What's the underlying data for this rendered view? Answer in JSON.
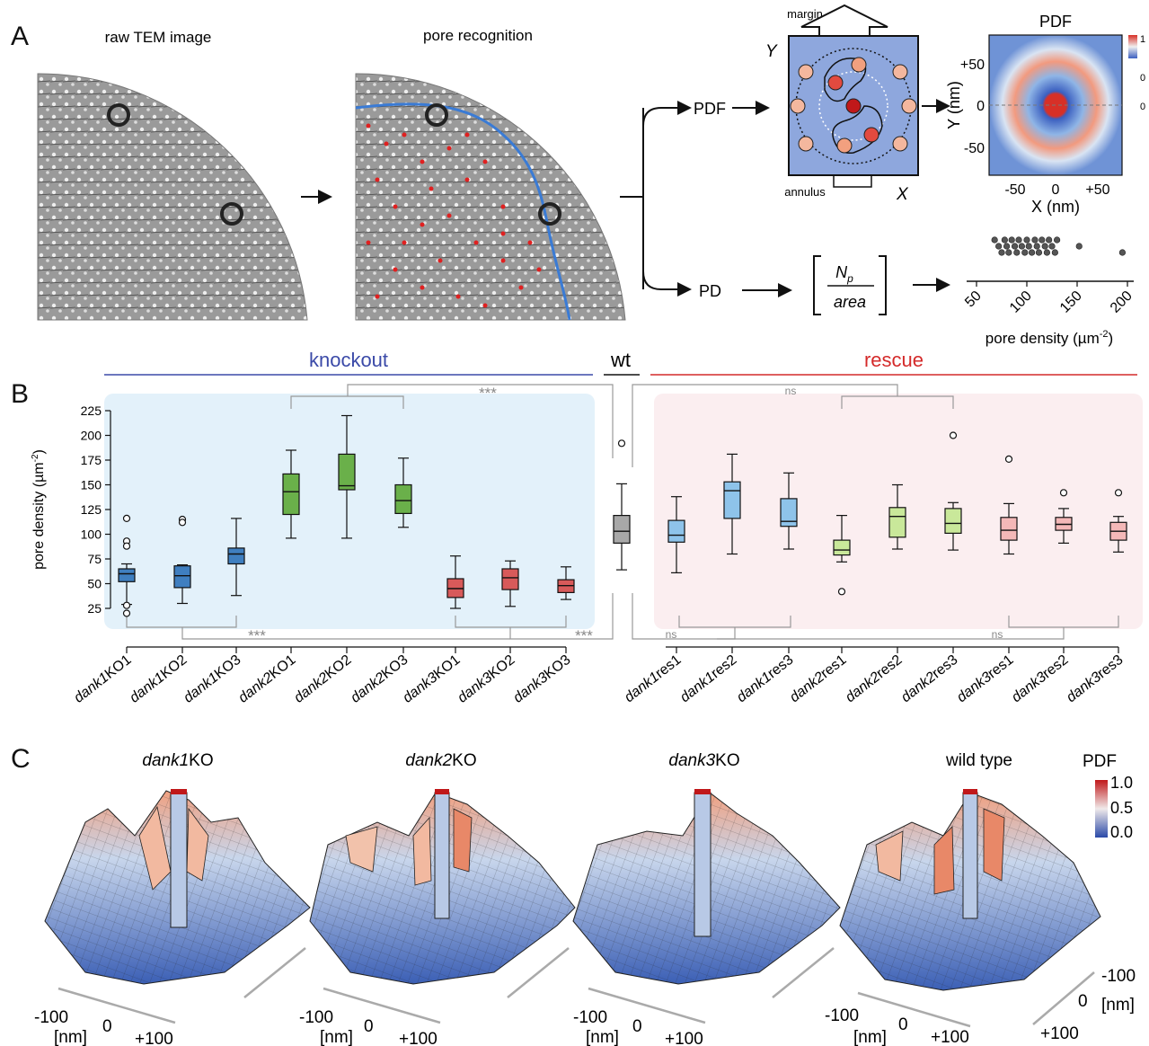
{
  "panel_a": {
    "letter": "A",
    "raw_title": "raw TEM image",
    "rec_title": "pore recognition",
    "pdf_label": "PDF",
    "pd_label": "PD",
    "margin_label": "margin",
    "annulus_label": "annulus",
    "x_letter": "X",
    "y_letter": "Y",
    "fraction_num": "N",
    "fraction_sub": "p",
    "fraction_den": "area",
    "heatmap": {
      "title": "PDF",
      "colorbar_ticks": [
        "1",
        "0",
        "0"
      ],
      "xticks": [
        "-50",
        "0",
        "+50"
      ],
      "yticks": [
        "+50",
        "0",
        "-50"
      ],
      "xlabel": "X (nm)",
      "ylabel": "Y (nm)"
    },
    "strip": {
      "ticks": [
        "50",
        "100",
        "150",
        "200"
      ],
      "xlabel": "pore density (µm",
      "xlabel_sup": "-2",
      "xlabel_end": ")"
    }
  },
  "panel_b": {
    "letter": "B",
    "group_knockout": "knockout",
    "group_wt": "wt",
    "group_rescue": "rescue",
    "ylabel": "pore density (µm",
    "ylabel_sup": "-2",
    "ylabel_end": ")",
    "sig": {
      "top_ko": "***",
      "top_res": "ns",
      "bot_ko1": "***",
      "bot_ko2": "***",
      "bot_res1": "ns",
      "bot_res2": "ns"
    },
    "colors": {
      "ko_bg": "#e3f1fa",
      "res_bg": "#fbeef0",
      "ko_line": "#3b4aa8",
      "res_line": "#d42a2a"
    }
  },
  "chart_data": {
    "type": "box",
    "ylabel": "pore density (µm-2)",
    "ylim": [
      20,
      230
    ],
    "yticks": [
      25,
      50,
      75,
      100,
      125,
      150,
      175,
      200,
      225
    ],
    "categories": [
      {
        "pre": "dank",
        "num": "1",
        "post": "KO1",
        "color": "#3f7fc0",
        "min": 29,
        "q1": 52,
        "median": 60,
        "q3": 65,
        "max": 70,
        "outliers": [
          116,
          93,
          88,
          28,
          20
        ]
      },
      {
        "pre": "dank",
        "num": "1",
        "post": "KO2",
        "color": "#3f7fc0",
        "min": 30,
        "q1": 46,
        "median": 58,
        "q3": 68,
        "max": 69,
        "outliers": [
          115,
          112
        ]
      },
      {
        "pre": "dank",
        "num": "1",
        "post": "KO3",
        "color": "#3f7fc0",
        "min": 38,
        "q1": 70,
        "median": 80,
        "q3": 86,
        "max": 116,
        "outliers": []
      },
      {
        "pre": "dank",
        "num": "2",
        "post": "KO1",
        "color": "#6ab04a",
        "min": 96,
        "q1": 120,
        "median": 143,
        "q3": 161,
        "max": 185,
        "outliers": []
      },
      {
        "pre": "dank",
        "num": "2",
        "post": "KO2",
        "color": "#6ab04a",
        "min": 96,
        "q1": 145,
        "median": 149,
        "q3": 181,
        "max": 220,
        "outliers": []
      },
      {
        "pre": "dank",
        "num": "2",
        "post": "KO3",
        "color": "#6ab04a",
        "min": 107,
        "q1": 121,
        "median": 134,
        "q3": 150,
        "max": 177,
        "outliers": []
      },
      {
        "pre": "dank",
        "num": "3",
        "post": "KO1",
        "color": "#d85a5a",
        "min": 25,
        "q1": 36,
        "median": 45,
        "q3": 55,
        "max": 78,
        "outliers": []
      },
      {
        "pre": "dank",
        "num": "3",
        "post": "KO2",
        "color": "#d85a5a",
        "min": 27,
        "q1": 44,
        "median": 56,
        "q3": 65,
        "max": 73,
        "outliers": []
      },
      {
        "pre": "dank",
        "num": "3",
        "post": "KO3",
        "color": "#d85a5a",
        "min": 34,
        "q1": 41,
        "median": 48,
        "q3": 54,
        "max": 67,
        "outliers": []
      },
      {
        "pre": "",
        "num": "",
        "post": "wt",
        "color": "#a8a8a8",
        "min": 64,
        "q1": 91,
        "median": 103,
        "q3": 119,
        "max": 151,
        "outliers": [
          192
        ],
        "hidden_label": true
      },
      {
        "pre": "dank",
        "num": "1",
        "post": "res1",
        "color": "#8ec3ea",
        "min": 61,
        "q1": 92,
        "median": 99,
        "q3": 114,
        "max": 138,
        "outliers": []
      },
      {
        "pre": "dank",
        "num": "1",
        "post": "res2",
        "color": "#8ec3ea",
        "min": 80,
        "q1": 116,
        "median": 144,
        "q3": 153,
        "max": 181,
        "outliers": []
      },
      {
        "pre": "dank",
        "num": "1",
        "post": "res3",
        "color": "#8ec3ea",
        "min": 85,
        "q1": 108,
        "median": 113,
        "q3": 136,
        "max": 162,
        "outliers": []
      },
      {
        "pre": "dank",
        "num": "2",
        "post": "res1",
        "color": "#c9e89a",
        "min": 72,
        "q1": 79,
        "median": 84,
        "q3": 94,
        "max": 119,
        "outliers": [
          42
        ]
      },
      {
        "pre": "dank",
        "num": "2",
        "post": "res2",
        "color": "#c9e89a",
        "min": 85,
        "q1": 97,
        "median": 118,
        "q3": 127,
        "max": 150,
        "outliers": []
      },
      {
        "pre": "dank",
        "num": "2",
        "post": "res3",
        "color": "#c9e89a",
        "min": 84,
        "q1": 101,
        "median": 111,
        "q3": 126,
        "max": 132,
        "outliers": [
          200
        ]
      },
      {
        "pre": "dank",
        "num": "3",
        "post": "res1",
        "color": "#f4b8b8",
        "min": 80,
        "q1": 94,
        "median": 104,
        "q3": 117,
        "max": 131,
        "outliers": [
          176
        ]
      },
      {
        "pre": "dank",
        "num": "3",
        "post": "res2",
        "color": "#f4b8b8",
        "min": 91,
        "q1": 104,
        "median": 110,
        "q3": 117,
        "max": 126,
        "outliers": [
          142
        ]
      },
      {
        "pre": "dank",
        "num": "3",
        "post": "res3",
        "color": "#f4b8b8",
        "min": 82,
        "q1": 94,
        "median": 103,
        "q3": 112,
        "max": 118,
        "outliers": [
          142
        ]
      }
    ],
    "strip_values": [
      68,
      72,
      75,
      78,
      80,
      82,
      85,
      88,
      90,
      92,
      95,
      98,
      100,
      102,
      105,
      108,
      110,
      112,
      115,
      118,
      120,
      122,
      125,
      128,
      130,
      152,
      195
    ]
  },
  "panel_c": {
    "letter": "C",
    "titles": [
      {
        "pre": "dank",
        "num": "1",
        "post": "KO"
      },
      {
        "pre": "dank",
        "num": "2",
        "post": "KO"
      },
      {
        "pre": "dank",
        "num": "3",
        "post": "KO"
      },
      {
        "pre": "",
        "num": "",
        "post": "wild type"
      }
    ],
    "axis_minus": "-100",
    "axis_zero": "0",
    "axis_plus": "+100",
    "axis_unit": "[nm]",
    "colorbar_title": "PDF",
    "colorbar_ticks": [
      "1.0",
      "0.5",
      "0.0"
    ]
  }
}
